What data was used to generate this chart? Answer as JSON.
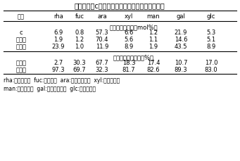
{
  "title": "表２　分画cに酸を処理した多糖の中性糖の構成",
  "col_headers": [
    "分画",
    "rha",
    "fuc",
    "ara",
    "xyl",
    "man",
    "gal",
    "glc"
  ],
  "section1_header": "中性糖の構成比（mol%）",
  "section1_rows": [
    [
      "c",
      "6.9",
      "0.8",
      "57.3",
      "6.6",
      "1.2",
      "21.9",
      "5.3"
    ],
    [
      "中性側",
      "1.9",
      "1.2",
      "70.4",
      "5.6",
      "1.1",
      "14.6",
      "5.1"
    ],
    [
      "酸性側",
      "23.9",
      "1.0",
      "11.9",
      "8.9",
      "1.9",
      "43.5",
      "8.9"
    ]
  ],
  "section2_header": "各中性糖の存在比（%）",
  "section2_rows": [
    [
      "中性側",
      "2.7",
      "30.3",
      "67.7",
      "18.3",
      "17.4",
      "10.7",
      "17.0"
    ],
    [
      "酸性側",
      "97.3",
      "69.7",
      "32.3",
      "81.7",
      "82.6",
      "89.3",
      "83.0"
    ]
  ],
  "footnote1": "rha:ラムノース  fuc:フコース  ara:アラビノース  xyl:キシロース",
  "footnote2": "man:マンノース  gal:ガラクトース  glc:グルコース",
  "bg_color": "#ffffff",
  "text_color": "#000000",
  "font_size": 6.0,
  "title_font_size": 7.0
}
